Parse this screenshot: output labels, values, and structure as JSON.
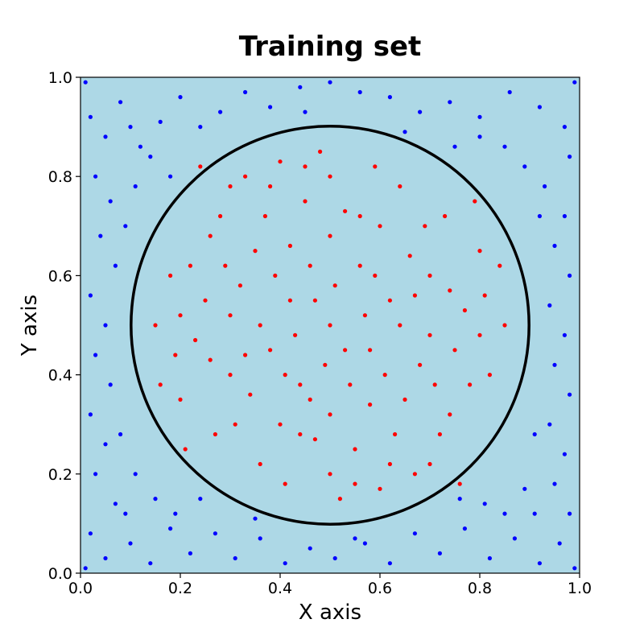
{
  "chart_data": {
    "type": "scatter",
    "title": "Training set",
    "xlabel": "X axis",
    "ylabel": "Y axis",
    "xlim": [
      0.0,
      1.0
    ],
    "ylim": [
      0.0,
      1.0
    ],
    "xticks": [
      "0.0",
      "0.2",
      "0.4",
      "0.6",
      "0.8",
      "1.0"
    ],
    "yticks": [
      "0.0",
      "0.2",
      "0.4",
      "0.6",
      "0.8",
      "1.0"
    ],
    "grid": false,
    "legend": "none",
    "background_color": "#add8e6",
    "boundary": {
      "shape": "circle",
      "center": [
        0.5,
        0.5
      ],
      "radius": 0.4,
      "color": "#000000"
    },
    "series": [
      {
        "color": "#0000ff",
        "points": [
          [
            0.02,
            0.92
          ],
          [
            0.05,
            0.88
          ],
          [
            0.08,
            0.95
          ],
          [
            0.12,
            0.86
          ],
          [
            0.16,
            0.91
          ],
          [
            0.2,
            0.96
          ],
          [
            0.24,
            0.9
          ],
          [
            0.28,
            0.93
          ],
          [
            0.33,
            0.97
          ],
          [
            0.38,
            0.94
          ],
          [
            0.44,
            0.98
          ],
          [
            0.5,
            0.99
          ],
          [
            0.56,
            0.97
          ],
          [
            0.62,
            0.96
          ],
          [
            0.68,
            0.93
          ],
          [
            0.74,
            0.95
          ],
          [
            0.8,
            0.92
          ],
          [
            0.86,
            0.97
          ],
          [
            0.92,
            0.94
          ],
          [
            0.97,
            0.9
          ],
          [
            0.03,
            0.8
          ],
          [
            0.06,
            0.75
          ],
          [
            0.04,
            0.68
          ],
          [
            0.07,
            0.62
          ],
          [
            0.02,
            0.56
          ],
          [
            0.05,
            0.5
          ],
          [
            0.03,
            0.44
          ],
          [
            0.06,
            0.38
          ],
          [
            0.02,
            0.32
          ],
          [
            0.05,
            0.26
          ],
          [
            0.03,
            0.2
          ],
          [
            0.07,
            0.14
          ],
          [
            0.02,
            0.08
          ],
          [
            0.05,
            0.03
          ],
          [
            0.1,
            0.06
          ],
          [
            0.14,
            0.02
          ],
          [
            0.18,
            0.09
          ],
          [
            0.22,
            0.04
          ],
          [
            0.27,
            0.08
          ],
          [
            0.31,
            0.03
          ],
          [
            0.36,
            0.07
          ],
          [
            0.41,
            0.02
          ],
          [
            0.46,
            0.05
          ],
          [
            0.51,
            0.03
          ],
          [
            0.57,
            0.06
          ],
          [
            0.62,
            0.02
          ],
          [
            0.67,
            0.08
          ],
          [
            0.72,
            0.04
          ],
          [
            0.77,
            0.09
          ],
          [
            0.82,
            0.03
          ],
          [
            0.87,
            0.07
          ],
          [
            0.92,
            0.02
          ],
          [
            0.96,
            0.06
          ],
          [
            0.98,
            0.12
          ],
          [
            0.95,
            0.18
          ],
          [
            0.97,
            0.24
          ],
          [
            0.94,
            0.3
          ],
          [
            0.98,
            0.36
          ],
          [
            0.95,
            0.42
          ],
          [
            0.97,
            0.48
          ],
          [
            0.94,
            0.54
          ],
          [
            0.98,
            0.6
          ],
          [
            0.95,
            0.66
          ],
          [
            0.97,
            0.72
          ],
          [
            0.93,
            0.78
          ],
          [
            0.98,
            0.84
          ],
          [
            0.1,
            0.9
          ],
          [
            0.14,
            0.84
          ],
          [
            0.18,
            0.8
          ],
          [
            0.11,
            0.78
          ],
          [
            0.15,
            0.15
          ],
          [
            0.11,
            0.2
          ],
          [
            0.19,
            0.12
          ],
          [
            0.24,
            0.15
          ],
          [
            0.85,
            0.12
          ],
          [
            0.89,
            0.17
          ],
          [
            0.81,
            0.14
          ],
          [
            0.76,
            0.15
          ],
          [
            0.85,
            0.86
          ],
          [
            0.89,
            0.82
          ],
          [
            0.8,
            0.88
          ],
          [
            0.75,
            0.86
          ],
          [
            0.09,
            0.12
          ],
          [
            0.91,
            0.12
          ],
          [
            0.08,
            0.28
          ],
          [
            0.92,
            0.72
          ],
          [
            0.09,
            0.7
          ],
          [
            0.91,
            0.28
          ],
          [
            0.01,
            0.99
          ],
          [
            0.99,
            0.01
          ],
          [
            0.01,
            0.01
          ],
          [
            0.99,
            0.99
          ],
          [
            0.35,
            0.11
          ],
          [
            0.65,
            0.89
          ],
          [
            0.45,
            0.93
          ],
          [
            0.55,
            0.07
          ]
        ]
      },
      {
        "color": "#ff0000",
        "points": [
          [
            0.5,
            0.5
          ],
          [
            0.42,
            0.55
          ],
          [
            0.58,
            0.45
          ],
          [
            0.35,
            0.65
          ],
          [
            0.65,
            0.35
          ],
          [
            0.3,
            0.4
          ],
          [
            0.7,
            0.6
          ],
          [
            0.45,
            0.75
          ],
          [
            0.55,
            0.25
          ],
          [
            0.25,
            0.55
          ],
          [
            0.75,
            0.45
          ],
          [
            0.4,
            0.3
          ],
          [
            0.6,
            0.7
          ],
          [
            0.33,
            0.8
          ],
          [
            0.67,
            0.2
          ],
          [
            0.2,
            0.35
          ],
          [
            0.8,
            0.65
          ],
          [
            0.48,
            0.85
          ],
          [
            0.52,
            0.15
          ],
          [
            0.15,
            0.5
          ],
          [
            0.85,
            0.5
          ],
          [
            0.38,
            0.45
          ],
          [
            0.62,
            0.55
          ],
          [
            0.28,
            0.72
          ],
          [
            0.72,
            0.28
          ],
          [
            0.44,
            0.38
          ],
          [
            0.56,
            0.62
          ],
          [
            0.22,
            0.62
          ],
          [
            0.78,
            0.38
          ],
          [
            0.36,
            0.22
          ],
          [
            0.64,
            0.78
          ],
          [
            0.46,
            0.62
          ],
          [
            0.54,
            0.38
          ],
          [
            0.27,
            0.28
          ],
          [
            0.73,
            0.72
          ],
          [
            0.41,
            0.18
          ],
          [
            0.59,
            0.82
          ],
          [
            0.19,
            0.44
          ],
          [
            0.81,
            0.56
          ],
          [
            0.32,
            0.58
          ],
          [
            0.68,
            0.42
          ],
          [
            0.5,
            0.68
          ],
          [
            0.5,
            0.32
          ],
          [
            0.24,
            0.82
          ],
          [
            0.76,
            0.18
          ],
          [
            0.43,
            0.48
          ],
          [
            0.57,
            0.52
          ],
          [
            0.3,
            0.52
          ],
          [
            0.7,
            0.48
          ],
          [
            0.47,
            0.27
          ],
          [
            0.53,
            0.73
          ],
          [
            0.37,
            0.72
          ],
          [
            0.63,
            0.28
          ],
          [
            0.21,
            0.25
          ],
          [
            0.79,
            0.75
          ],
          [
            0.39,
            0.6
          ],
          [
            0.61,
            0.4
          ],
          [
            0.26,
            0.43
          ],
          [
            0.74,
            0.57
          ],
          [
            0.45,
            0.82
          ],
          [
            0.55,
            0.18
          ],
          [
            0.34,
            0.36
          ],
          [
            0.66,
            0.64
          ],
          [
            0.18,
            0.6
          ],
          [
            0.82,
            0.4
          ],
          [
            0.49,
            0.42
          ],
          [
            0.51,
            0.58
          ],
          [
            0.31,
            0.3
          ],
          [
            0.69,
            0.7
          ],
          [
            0.4,
            0.83
          ],
          [
            0.6,
            0.17
          ],
          [
            0.23,
            0.47
          ],
          [
            0.77,
            0.53
          ],
          [
            0.42,
            0.66
          ],
          [
            0.58,
            0.34
          ],
          [
            0.29,
            0.62
          ],
          [
            0.71,
            0.38
          ],
          [
            0.36,
            0.5
          ],
          [
            0.64,
            0.5
          ],
          [
            0.5,
            0.8
          ],
          [
            0.5,
            0.2
          ],
          [
            0.16,
            0.38
          ],
          [
            0.84,
            0.62
          ],
          [
            0.44,
            0.28
          ],
          [
            0.56,
            0.72
          ],
          [
            0.33,
            0.44
          ],
          [
            0.67,
            0.56
          ],
          [
            0.26,
            0.68
          ],
          [
            0.74,
            0.32
          ],
          [
            0.38,
            0.78
          ],
          [
            0.62,
            0.22
          ],
          [
            0.47,
            0.55
          ],
          [
            0.53,
            0.45
          ],
          [
            0.2,
            0.52
          ],
          [
            0.8,
            0.48
          ],
          [
            0.41,
            0.4
          ],
          [
            0.59,
            0.6
          ],
          [
            0.3,
            0.78
          ],
          [
            0.7,
            0.22
          ],
          [
            0.46,
            0.35
          ]
        ]
      }
    ]
  }
}
